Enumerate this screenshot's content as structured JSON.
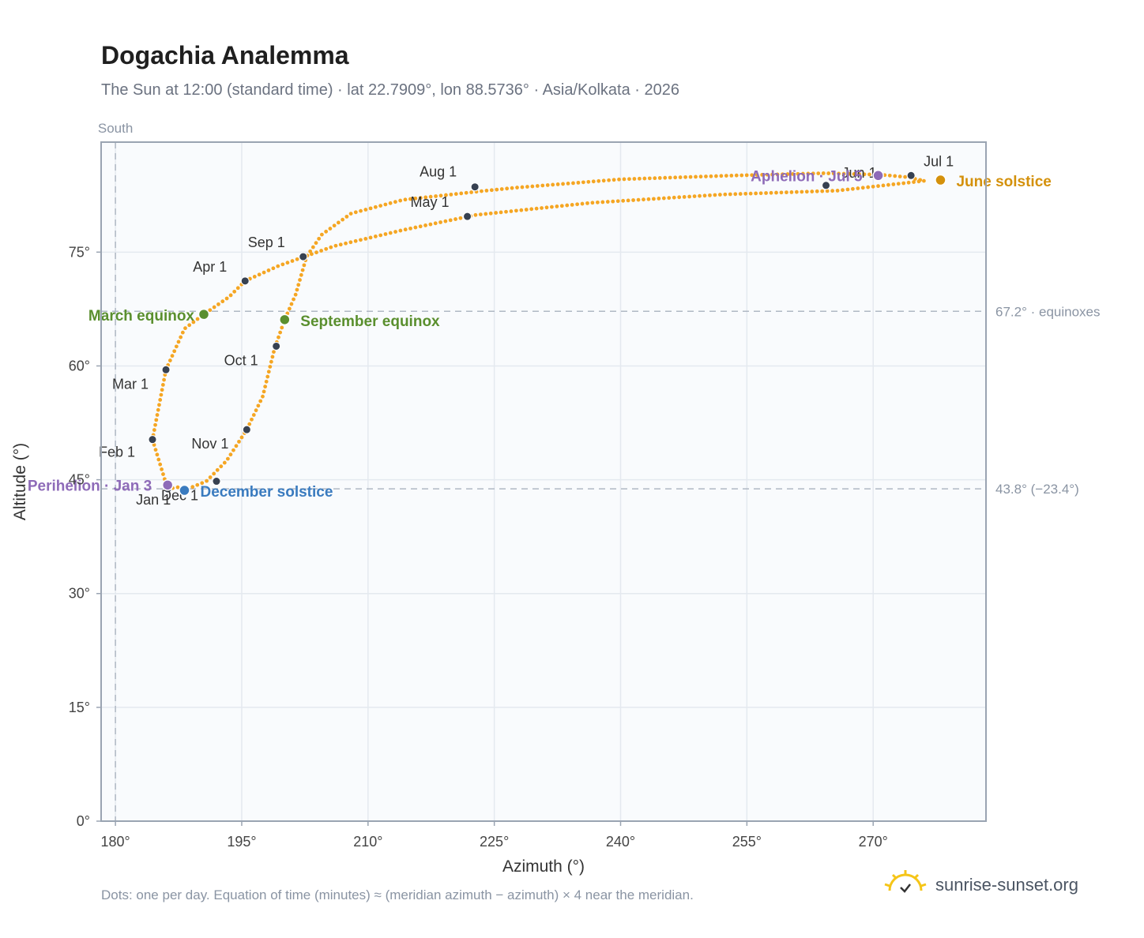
{
  "title": "Dogachia Analemma",
  "subtitle": "The Sun at 12:00 (standard time) · lat 22.7909°, lon 88.5736° · Asia/Kolkata · 2026",
  "footnote": "Dots: one per day. Equation of time (minutes) ≈ (meridian azimuth − azimuth) × 4 near the meridian.",
  "brand": {
    "name": "sunrise-sunset.org",
    "logo_icon": "sun-logo-icon"
  },
  "colors": {
    "path": "#f5a623",
    "month_marker": "#374151",
    "equinox": "#5a8f2e",
    "june_solstice": "#d4910c",
    "december_solstice": "#3a7bbf",
    "apsis": "#8e6bb8",
    "plot_bg": "#f9fbfd",
    "grid": "#e4e9ef",
    "frame": "#9aa4b2",
    "ref_line": "#b0b8c4"
  },
  "chart_data": {
    "type": "scatter",
    "title": "Dogachia Analemma",
    "xlabel": "Azimuth (°)",
    "ylabel": "Altitude (°)",
    "xlim": [
      178.3,
      283.4
    ],
    "ylim": [
      0,
      89.5
    ],
    "x_ticks": [
      180,
      195,
      210,
      225,
      240,
      255,
      270
    ],
    "x_tick_labels": [
      "180°",
      "195°",
      "210°",
      "225°",
      "240°",
      "255°",
      "270°"
    ],
    "y_ticks": [
      0,
      15,
      30,
      45,
      60,
      75
    ],
    "y_tick_labels": [
      "0°",
      "15°",
      "30°",
      "45°",
      "60°",
      "75°"
    ],
    "grid": true,
    "top_label": "South",
    "south_azimuth": 180,
    "reference_lines": [
      {
        "y": 67.2,
        "label": "67.2° · equinoxes"
      },
      {
        "y": 43.8,
        "label": "43.8° (−23.4°)"
      }
    ],
    "path_points": [
      [
        186.2,
        43.8
      ],
      [
        184.4,
        50.3
      ],
      [
        186.0,
        59.5
      ],
      [
        188.2,
        64.9
      ],
      [
        190.5,
        66.8
      ],
      [
        193.5,
        69.1
      ],
      [
        195.4,
        71.2
      ],
      [
        199.4,
        73.2
      ],
      [
        206.0,
        75.8
      ],
      [
        214.1,
        77.9
      ],
      [
        222.8,
        79.9
      ],
      [
        236.5,
        81.5
      ],
      [
        252.2,
        82.6
      ],
      [
        265.7,
        83.1
      ],
      [
        276.1,
        84.4
      ],
      [
        273.9,
        84.9
      ],
      [
        270.9,
        85.2
      ],
      [
        264.2,
        85.4
      ],
      [
        253.5,
        85.1
      ],
      [
        240.0,
        84.6
      ],
      [
        227.6,
        83.5
      ],
      [
        224.0,
        83.1
      ],
      [
        214.2,
        81.9
      ],
      [
        208.0,
        80.1
      ],
      [
        204.5,
        77.3
      ],
      [
        202.7,
        74.4
      ],
      [
        201.4,
        69.4
      ],
      [
        200.1,
        66.1
      ],
      [
        198.9,
        62.3
      ],
      [
        197.5,
        56.0
      ],
      [
        195.6,
        51.6
      ],
      [
        193.2,
        47.5
      ],
      [
        190.8,
        44.8
      ],
      [
        188.6,
        43.8
      ],
      [
        187.4,
        44.0
      ],
      [
        186.2,
        43.8
      ]
    ],
    "month_markers": [
      {
        "label": "Jan 1",
        "az": 186.2,
        "alt": 43.8
      },
      {
        "label": "Feb 1",
        "az": 184.4,
        "alt": 50.3
      },
      {
        "label": "Mar 1",
        "az": 186.0,
        "alt": 59.5
      },
      {
        "label": "Apr 1",
        "az": 195.4,
        "alt": 71.2
      },
      {
        "label": "May 1",
        "az": 221.8,
        "alt": 79.7
      },
      {
        "label": "Jun 1",
        "az": 264.4,
        "alt": 83.8
      },
      {
        "label": "Jul 1",
        "az": 274.5,
        "alt": 85.1
      },
      {
        "label": "Aug 1",
        "az": 222.7,
        "alt": 83.6
      },
      {
        "label": "Sep 1",
        "az": 202.3,
        "alt": 74.4
      },
      {
        "label": "Oct 1",
        "az": 199.1,
        "alt": 62.6
      },
      {
        "label": "Nov 1",
        "az": 195.6,
        "alt": 51.6
      },
      {
        "label": "Dec 1",
        "az": 192.0,
        "alt": 44.8
      }
    ],
    "events": [
      {
        "label": "March equinox",
        "az": 190.5,
        "alt": 66.8,
        "color_key": "equinox"
      },
      {
        "label": "September equinox",
        "az": 200.1,
        "alt": 66.1,
        "color_key": "equinox"
      },
      {
        "label": "June solstice",
        "az": 278.0,
        "alt": 84.5,
        "color_key": "june_solstice"
      },
      {
        "label": "December solstice",
        "az": 188.2,
        "alt": 43.6,
        "color_key": "december_solstice"
      },
      {
        "label": "Perihelion · Jan 3",
        "az": 186.2,
        "alt": 44.3,
        "color_key": "apsis"
      },
      {
        "label": "Aphelion · Jul 5",
        "az": 270.6,
        "alt": 85.1,
        "color_key": "apsis"
      }
    ]
  }
}
